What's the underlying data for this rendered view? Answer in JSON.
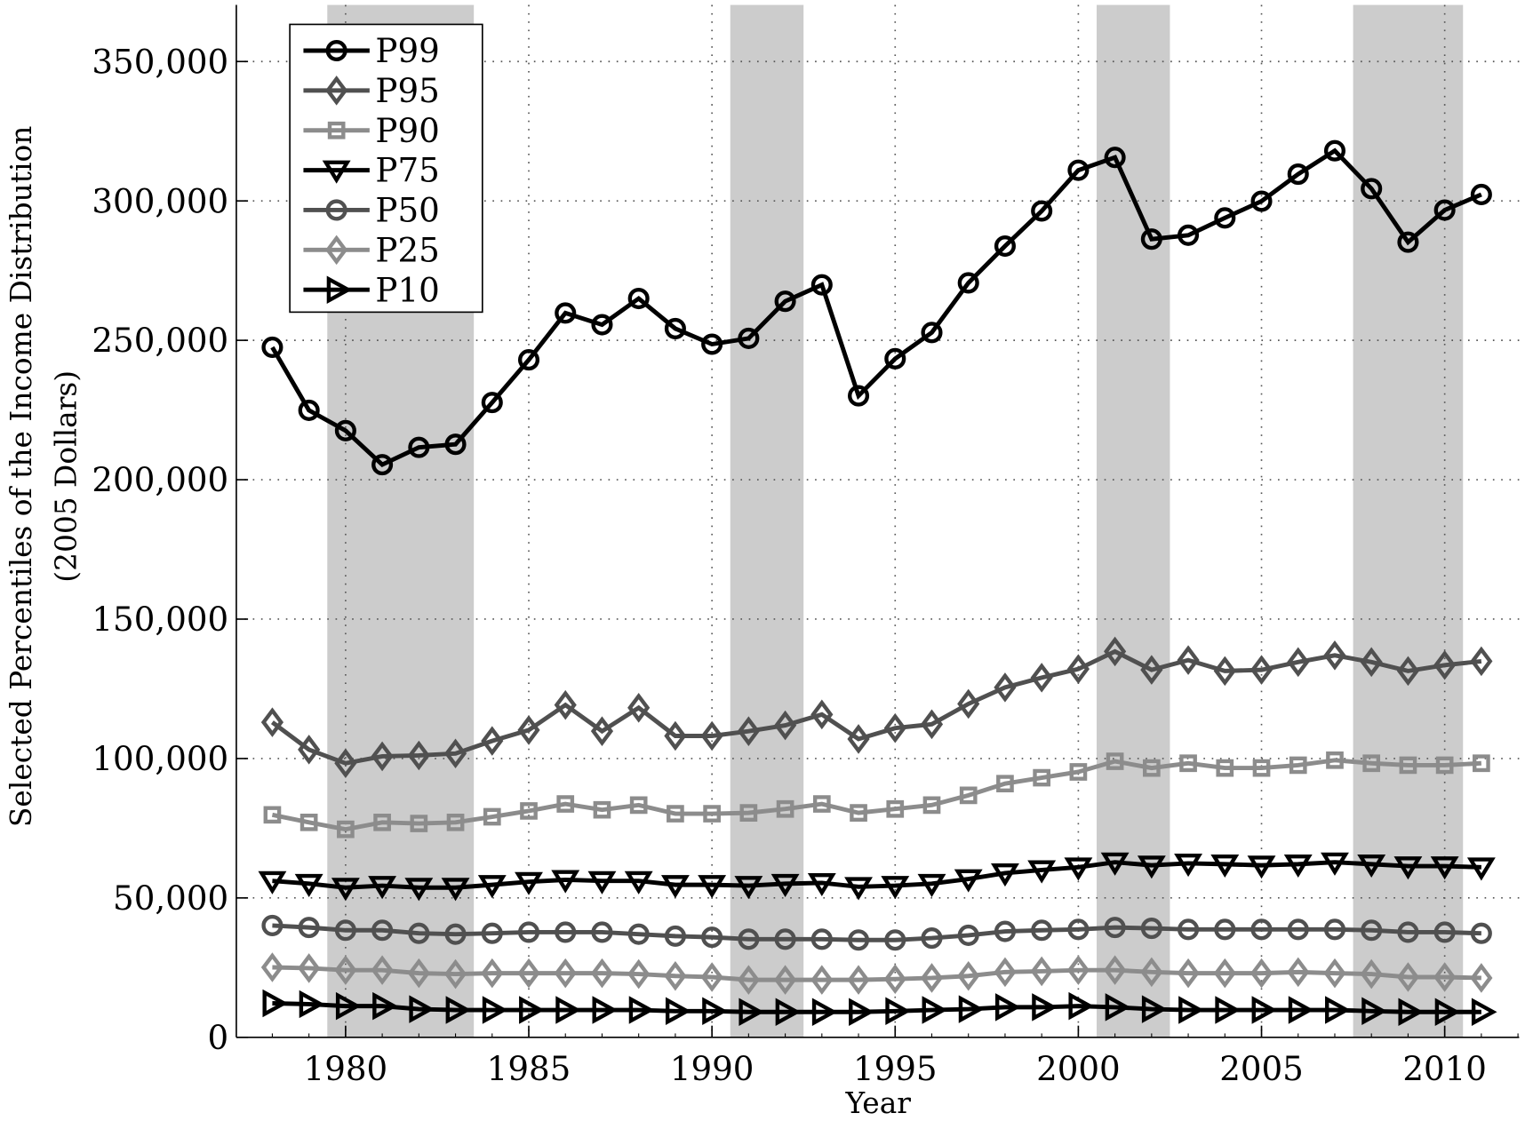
{
  "chart_data": {
    "type": "line",
    "title": "",
    "xlabel": "Year",
    "ylabel": "Selected Percentiles of the Income Distribution",
    "ylabel2": "(2005 Dollars)",
    "xlim": [
      1977.3,
      2012.1
    ],
    "ylim": [
      0,
      370000
    ],
    "xticks": [
      1980,
      1985,
      1990,
      1995,
      2000,
      2005,
      2010
    ],
    "yticks": [
      0,
      50000,
      100000,
      150000,
      200000,
      250000,
      300000,
      350000
    ],
    "ytick_labels": [
      "0",
      "50,000",
      "100,000",
      "150,000",
      "200,000",
      "250,000",
      "300,000",
      "350,000"
    ],
    "grid": true,
    "legend_position": "top-left",
    "shaded_periods": [
      [
        1979.5,
        1983.5
      ],
      [
        1990.5,
        1992.5
      ],
      [
        2000.5,
        2002.5
      ],
      [
        2007.5,
        2010.5
      ]
    ],
    "shade_color": "#cccccc",
    "x": [
      1978,
      1979,
      1980,
      1981,
      1982,
      1983,
      1984,
      1985,
      1986,
      1987,
      1988,
      1989,
      1990,
      1991,
      1992,
      1993,
      1994,
      1995,
      1996,
      1997,
      1998,
      1999,
      2000,
      2001,
      2002,
      2003,
      2004,
      2005,
      2006,
      2007,
      2008,
      2009,
      2010,
      2011
    ],
    "series": [
      {
        "name": "P99",
        "marker": "circle",
        "color": "#000000",
        "values": [
          247500,
          224900,
          217600,
          205400,
          211600,
          212700,
          227700,
          243000,
          259800,
          255600,
          265000,
          254200,
          248600,
          250700,
          264000,
          269900,
          230100,
          243400,
          252800,
          270600,
          283800,
          296400,
          311000,
          315600,
          286300,
          287700,
          293900,
          299900,
          309600,
          318000,
          304400,
          285200,
          296700,
          302300
        ]
      },
      {
        "name": "P95",
        "marker": "diamond",
        "color": "#505050",
        "values": [
          113000,
          103200,
          98300,
          100800,
          101100,
          101800,
          106300,
          110200,
          119200,
          109800,
          118200,
          108100,
          108100,
          109800,
          111900,
          115800,
          107000,
          110900,
          112300,
          119600,
          125500,
          129000,
          132100,
          138400,
          131800,
          135300,
          131400,
          131800,
          134600,
          137000,
          134600,
          131400,
          133500,
          134900
        ]
      },
      {
        "name": "P90",
        "marker": "square",
        "color": "#8c8c8c",
        "values": [
          79800,
          77100,
          74600,
          77100,
          76700,
          77100,
          79100,
          81200,
          83700,
          81600,
          83300,
          80200,
          80200,
          80500,
          81900,
          83700,
          80500,
          81900,
          83300,
          86800,
          91000,
          93100,
          95200,
          99000,
          96600,
          98300,
          96600,
          96600,
          97600,
          99400,
          98300,
          97600,
          97600,
          98300
        ]
      },
      {
        "name": "P75",
        "marker": "triangle-down",
        "color": "#000000",
        "values": [
          56100,
          55100,
          53700,
          54400,
          53700,
          53700,
          54700,
          55800,
          56500,
          56100,
          56100,
          54700,
          54700,
          54400,
          55100,
          55400,
          54000,
          54400,
          55100,
          56800,
          58900,
          60000,
          61000,
          62800,
          61700,
          62400,
          62100,
          61700,
          62100,
          62800,
          62100,
          61400,
          61400,
          61000
        ]
      },
      {
        "name": "P50",
        "marker": "circle",
        "color": "#505050",
        "values": [
          40100,
          39400,
          38400,
          38400,
          37300,
          37000,
          37300,
          37700,
          37700,
          37700,
          37000,
          36300,
          35900,
          35200,
          35200,
          35200,
          34900,
          34900,
          35600,
          36600,
          38000,
          38400,
          38700,
          39400,
          39100,
          38700,
          38700,
          38700,
          38700,
          38700,
          38400,
          37700,
          37700,
          37300
        ]
      },
      {
        "name": "P25",
        "marker": "diamond",
        "color": "#8c8c8c",
        "values": [
          25100,
          24800,
          24100,
          24100,
          23000,
          22700,
          23000,
          23000,
          23000,
          23000,
          22700,
          22000,
          21600,
          20600,
          20600,
          20600,
          20600,
          20900,
          21300,
          22000,
          23400,
          23700,
          24100,
          24100,
          23400,
          23000,
          23000,
          23000,
          23400,
          23000,
          22700,
          21600,
          21600,
          21300
        ]
      },
      {
        "name": "P10",
        "marker": "triangle-right",
        "color": "#000000",
        "values": [
          12200,
          11900,
          11200,
          11200,
          10100,
          9800,
          9800,
          9800,
          9800,
          9800,
          9800,
          9400,
          9400,
          9100,
          9100,
          9100,
          9100,
          9400,
          9800,
          10100,
          10800,
          10800,
          11200,
          10800,
          10100,
          9800,
          9800,
          9800,
          9800,
          9800,
          9400,
          9100,
          9100,
          9100
        ]
      }
    ]
  }
}
